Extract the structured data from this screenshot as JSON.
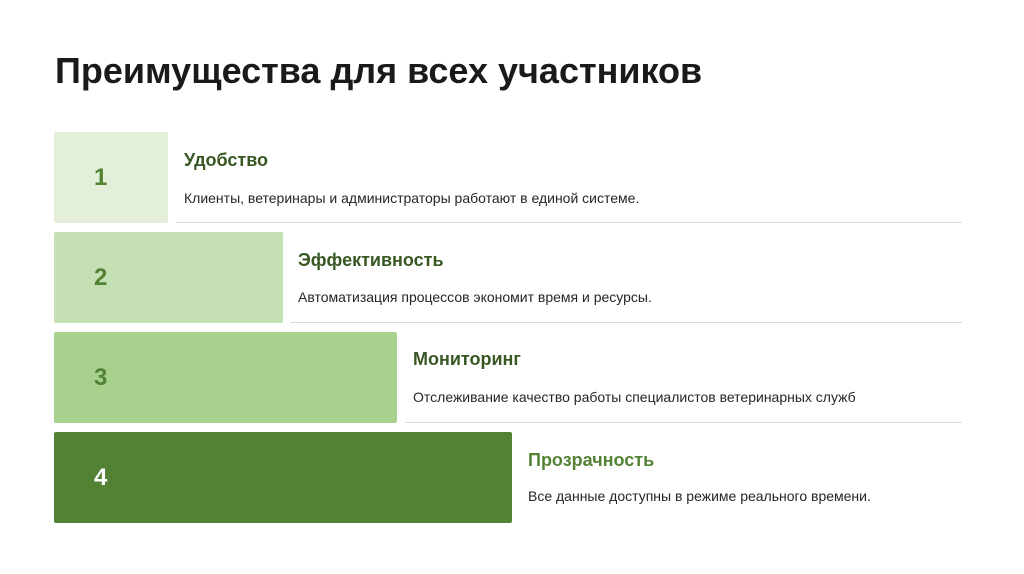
{
  "title": "Преимущества для всех участников",
  "steps": [
    {
      "number": "1",
      "heading": "Удобство",
      "description": "Клиенты, ветеринары и администраторы работают в единой системе."
    },
    {
      "number": "2",
      "heading": "Эффективность",
      "description": "Автоматизация процессов экономит время и ресурсы."
    },
    {
      "number": "3",
      "heading": "Мониторинг",
      "description": "Отслеживание качество работы специалистов ветеринарных служб"
    },
    {
      "number": "4",
      "heading": "Прозрачность",
      "description": "Все данные доступны в режиме реального времени."
    }
  ],
  "colors": {
    "step1": "#e3efd9",
    "step2": "#c5e0b4",
    "step3": "#a9d18e",
    "step4": "#548235",
    "accent": "#548235",
    "heading_dark": "#385723"
  }
}
